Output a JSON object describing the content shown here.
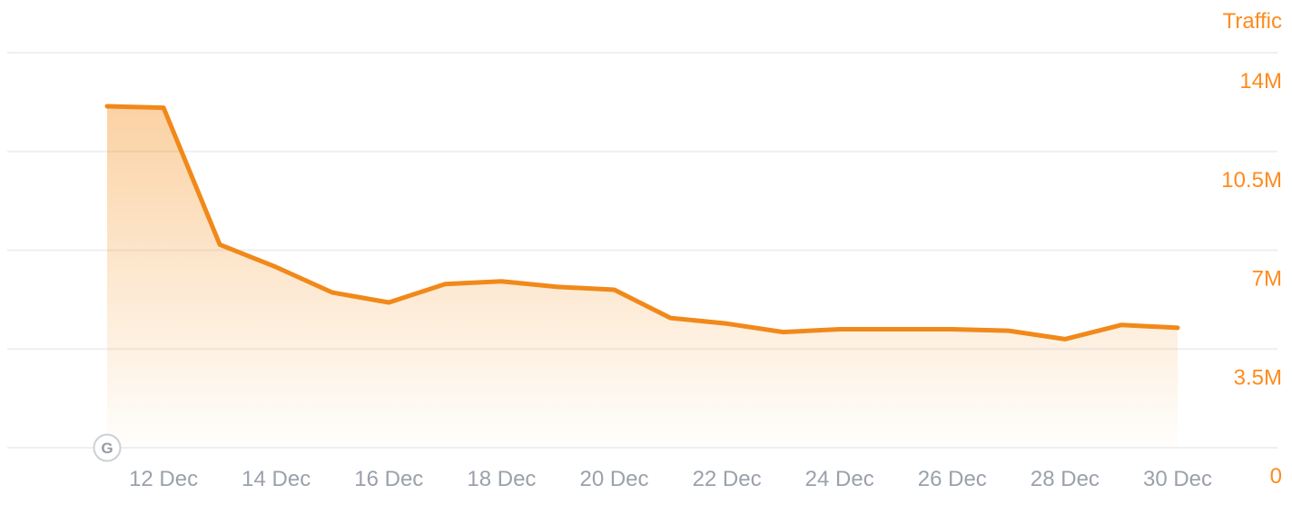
{
  "chart_data": {
    "type": "area",
    "title": "Traffic",
    "x": [
      "11 Dec",
      "12 Dec",
      "13 Dec",
      "14 Dec",
      "15 Dec",
      "16 Dec",
      "17 Dec",
      "18 Dec",
      "19 Dec",
      "20 Dec",
      "21 Dec",
      "22 Dec",
      "23 Dec",
      "24 Dec",
      "25 Dec",
      "26 Dec",
      "27 Dec",
      "28 Dec",
      "29 Dec",
      "30 Dec"
    ],
    "values_millions": [
      12.1,
      12.05,
      7.2,
      6.4,
      5.5,
      5.15,
      5.8,
      5.9,
      5.7,
      5.6,
      4.6,
      4.4,
      4.1,
      4.2,
      4.2,
      4.2,
      4.15,
      3.85,
      4.35,
      4.25
    ],
    "x_tick_labels": [
      "12 Dec",
      "14 Dec",
      "16 Dec",
      "18 Dec",
      "20 Dec",
      "22 Dec",
      "24 Dec",
      "26 Dec",
      "28 Dec",
      "30 Dec"
    ],
    "y_tick_labels": [
      "14M",
      "10.5M",
      "7M",
      "3.5M",
      "0"
    ],
    "y_tick_values_millions": [
      14,
      10.5,
      7,
      3.5,
      0
    ],
    "ylim_millions": [
      0,
      14
    ],
    "grid": "horizontal",
    "legend_position": "none",
    "annotation_marker": {
      "label": "G",
      "name": "google-update-marker",
      "x": "11 Dec",
      "position": "x-axis-baseline"
    },
    "colors": {
      "line": "#f1891a",
      "area_top": "#f48c16",
      "area_top_opacity": 0.4,
      "labels_orange": "#ff8b1e",
      "labels_gray": "#9aa1ab",
      "grid": "#edeff1",
      "marker_border": "#ccd0d6",
      "marker_letter": "#949ca6",
      "background": "#ffffff"
    }
  }
}
